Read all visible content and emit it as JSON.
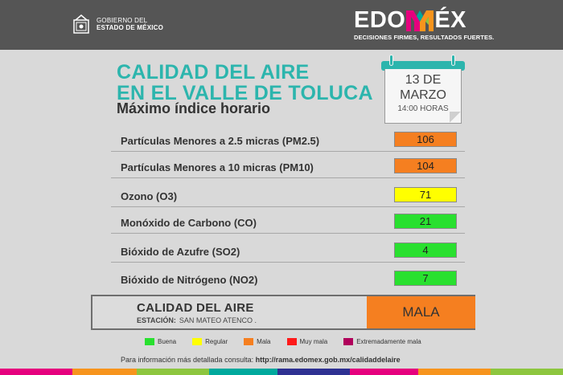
{
  "header": {
    "gov_line1": "GOBIERNO DEL",
    "gov_line2": "ESTADO DE MÉXICO",
    "brand_prefix": "EDO",
    "brand_suffix": "ÉX",
    "brand_tagline": "DECISIONES FIRMES, RESULTADOS FUERTES.",
    "brand_colors": [
      "#e6007e",
      "#f7941d",
      "#00a99d",
      "#8dc63f"
    ]
  },
  "title": {
    "line1": "CALIDAD DEL AIRE",
    "line2": "EN EL VALLE DE TOLUCA",
    "line3": "Máximo índice horario"
  },
  "calendar": {
    "day": "13 DE",
    "month": "MARZO",
    "time": "14:00 HORAS"
  },
  "pollutants": [
    {
      "label": "Partículas Menores a 2.5 micras (PM2.5)",
      "value": "106",
      "color": "#f57f20"
    },
    {
      "label": "Partículas Menores a 10 micras (PM10)",
      "value": "104",
      "color": "#f57f20"
    },
    {
      "label": "Ozono (O3)",
      "value": "71",
      "color": "#ffff00"
    },
    {
      "label": "Monóxido de Carbono (CO)",
      "value": "21",
      "color": "#29e02f"
    },
    {
      "label": "Bióxido de Azufre (SO2)",
      "value": "4",
      "color": "#29e02f"
    },
    {
      "label": "Bióxido de Nitrógeno (NO2)",
      "value": "7",
      "color": "#29e02f"
    }
  ],
  "result": {
    "title": "CALIDAD DEL AIRE",
    "station_label": "ESTACIÓN:",
    "station_name": "SAN MATEO ATENCO .",
    "value": "MALA",
    "color": "#f57f20"
  },
  "legend": [
    {
      "label": "Buena",
      "color": "#29e02f"
    },
    {
      "label": "Regular",
      "color": "#ffff00"
    },
    {
      "label": "Mala",
      "color": "#f57f20"
    },
    {
      "label": "Muy mala",
      "color": "#ff1a1a"
    },
    {
      "label": "Extremadamente mala",
      "color": "#b0005b"
    }
  ],
  "info": {
    "text": "Para información más detallada consulta:",
    "url": "http://rama.edomex.gob.mx/calidaddelaire"
  },
  "stripe_colors": [
    "#e6007e",
    "#f7941d",
    "#8dc63f",
    "#00a99d",
    "#2e3192",
    "#e6007e",
    "#f7941d",
    "#8dc63f"
  ]
}
